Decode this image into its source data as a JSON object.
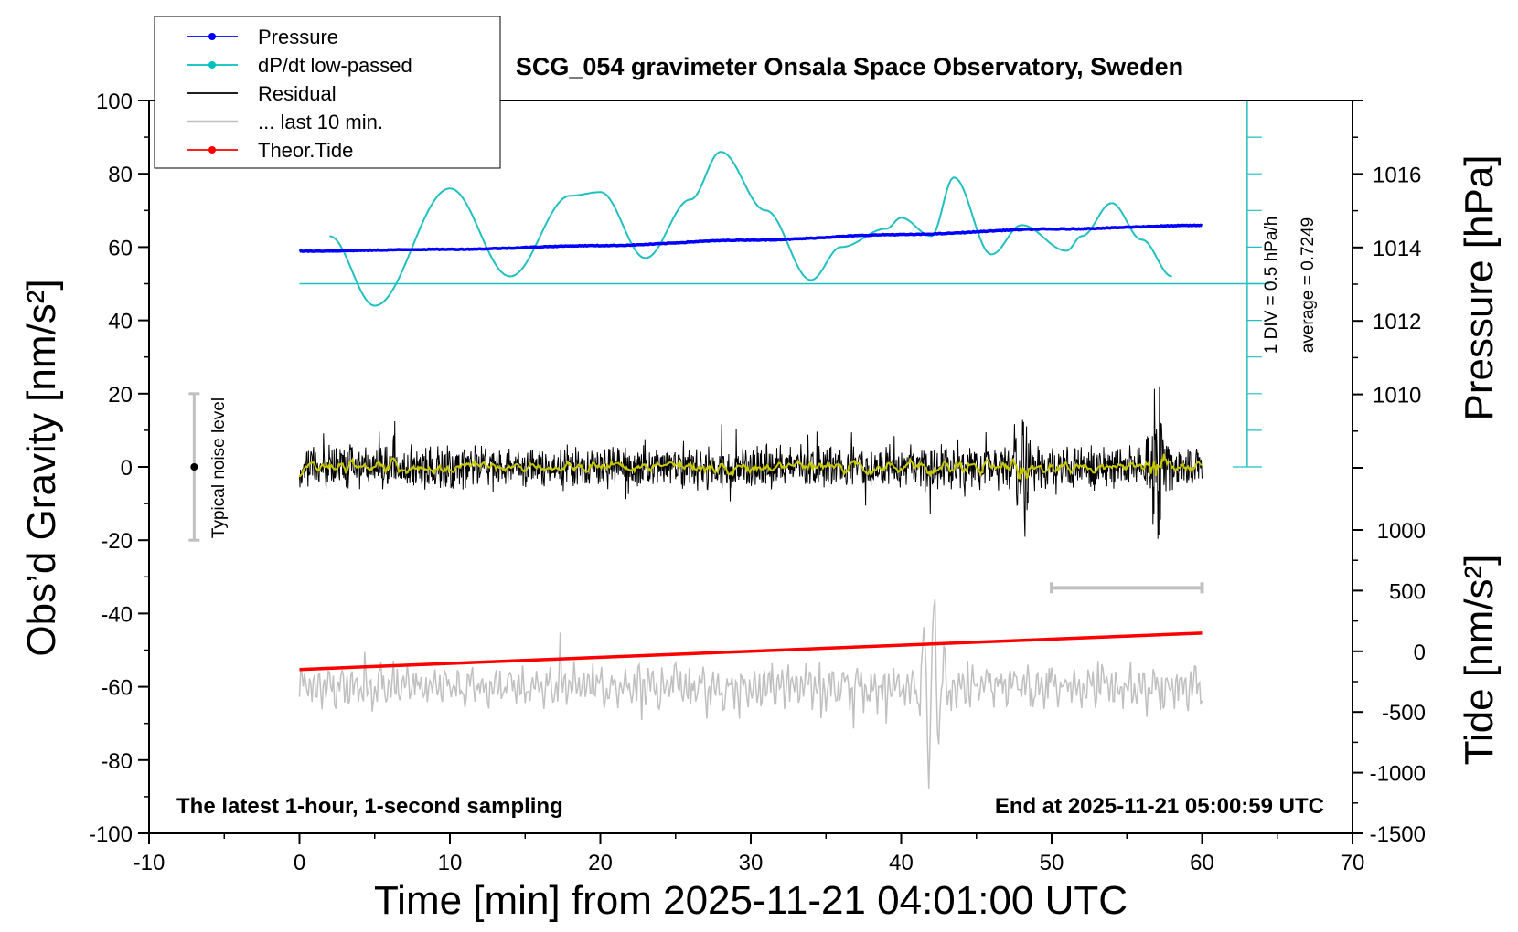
{
  "chart_data": {
    "type": "line",
    "title": "SCG_054 gravimeter Onsala Space Observatory, Sweden",
    "xlabel": "Time [min] from 2025-11-21 04:01:00 UTC",
    "ylabel_left": "Obs’d Gravity [nm/s²]",
    "ylabel_right_top": "Pressure [hPa]",
    "ylabel_right_bottom": "Tide [nm/s²]",
    "xlim": [
      -10,
      70
    ],
    "ylim": [
      -100,
      100
    ],
    "pressure_ylim": [
      1008,
      1018
    ],
    "tide_ylim": [
      -1500,
      1000
    ],
    "x_ticks": [
      -10,
      0,
      10,
      20,
      30,
      40,
      50,
      60,
      70
    ],
    "y_ticks": [
      100,
      80,
      60,
      40,
      20,
      0,
      -20,
      -40,
      -60,
      -80,
      -100
    ],
    "pressure_ticks": [
      1016,
      1014,
      1012,
      1010
    ],
    "tide_ticks": [
      1000,
      500,
      0,
      -500,
      -1000,
      -1500
    ],
    "notes": {
      "bottom_left": "The latest 1-hour, 1-second sampling",
      "bottom_right": "End at 2025-11-21 05:00:59 UTC",
      "noise": "Typical noise level",
      "dpdt_scale": "1 DIV = 0.5 hPa/h",
      "dpdt_average": "average = 0.7249"
    },
    "legend": {
      "placement": "top-left",
      "entries": [
        {
          "label": "Pressure",
          "color": "#0000ff",
          "marker": true
        },
        {
          "label": "dP/dt low-passed",
          "color": "#00c0c0",
          "marker": true
        },
        {
          "label": "Residual",
          "color": "#000000",
          "marker": false
        },
        {
          "label": "... last 10 min.",
          "color": "#c0c0c0",
          "marker": false
        },
        {
          "label": "Theor.Tide",
          "color": "#ff0000",
          "marker": true
        }
      ]
    },
    "colors": {
      "pressure": "#0000ff",
      "dpdt": "#20c0c0",
      "residual": "#000000",
      "residual_smoothed": "#c8c800",
      "last10": "#c0c0c0",
      "tide": "#ff0000",
      "noise_bar": "#c0c0c0"
    },
    "series": [
      {
        "name": "Pressure",
        "unit": "hPa",
        "x": [
          0,
          10,
          20,
          30,
          40,
          50,
          60
        ],
        "y": [
          1013.9,
          1013.95,
          1014.05,
          1014.2,
          1014.35,
          1014.5,
          1014.6
        ]
      },
      {
        "name": "dP/dt low-passed",
        "unit": "gravity-axis equivalent",
        "x": [
          2,
          5,
          10,
          14,
          18,
          20,
          23,
          26,
          28,
          31,
          34,
          36,
          39,
          40,
          42,
          43.5,
          46,
          48,
          51,
          52,
          54,
          56,
          58
        ],
        "y": [
          63,
          44,
          76,
          52,
          74,
          75,
          57,
          73,
          86,
          70,
          51,
          60,
          65,
          68,
          63,
          79,
          58,
          66,
          59,
          63,
          72,
          62,
          52
        ]
      },
      {
        "name": "Residual",
        "x_range": [
          0,
          60
        ],
        "baseline": 0,
        "noise_amplitude": 6,
        "events": [
          {
            "x": 48,
            "min": -19,
            "max": 9
          },
          {
            "x": 57,
            "min": -22,
            "max": 22
          }
        ]
      },
      {
        "name": "... last 10 min.",
        "x_range": [
          0,
          60
        ],
        "baseline": -60,
        "events": [
          {
            "x": 42,
            "min": -84,
            "max": -40
          }
        ]
      },
      {
        "name": "Theor.Tide",
        "unit": "nm/s²",
        "x": [
          0,
          60
        ],
        "y": [
          -150,
          150
        ]
      }
    ],
    "noise_level": {
      "x": -7,
      "center": 0,
      "min": -20,
      "max": 20
    },
    "dpdt_zero_line": 50,
    "dpdt_scale_range": {
      "x": 63,
      "min": 0,
      "max": 100
    },
    "last10_bar": {
      "x": [
        50,
        60
      ],
      "y": -33
    }
  }
}
